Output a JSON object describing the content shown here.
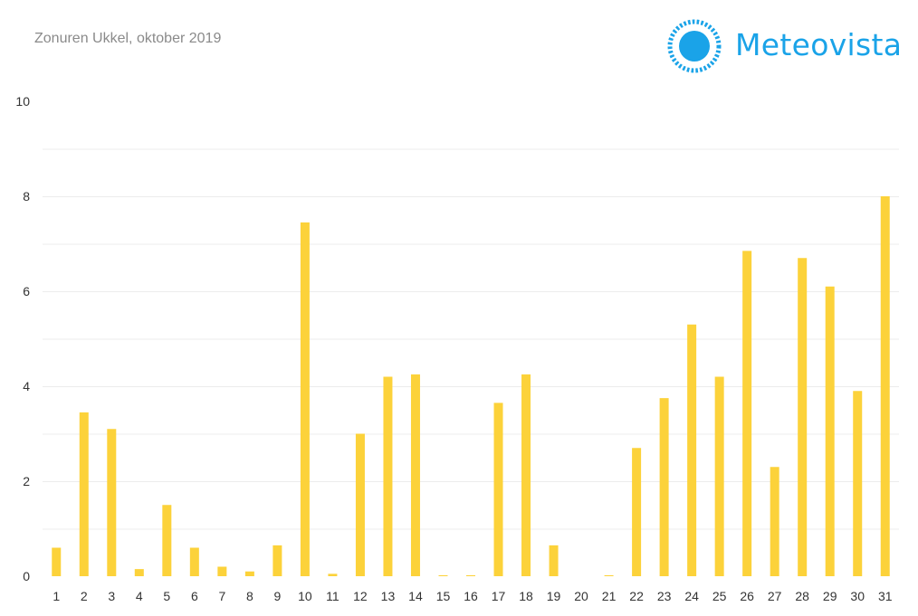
{
  "title": "Zonuren Ukkel, oktober 2019",
  "brand": {
    "name": "Meteovista",
    "icon": "sun-logo-icon",
    "color": "#1aa3e8"
  },
  "chart_data": {
    "type": "bar",
    "title": "Zonuren Ukkel, oktober 2019",
    "xlabel": "",
    "ylabel": "",
    "ylim": [
      0,
      10
    ],
    "yticks": [
      0,
      2,
      4,
      6,
      8,
      10
    ],
    "grid": true,
    "bar_color": "#fcd23a",
    "categories": [
      "1",
      "2",
      "3",
      "4",
      "5",
      "6",
      "7",
      "8",
      "9",
      "10",
      "11",
      "12",
      "13",
      "14",
      "15",
      "16",
      "17",
      "18",
      "19",
      "20",
      "21",
      "22",
      "23",
      "24",
      "25",
      "26",
      "27",
      "28",
      "29",
      "30",
      "31"
    ],
    "values": [
      0.6,
      3.45,
      3.1,
      0.15,
      1.5,
      0.6,
      0.2,
      0.1,
      0.65,
      7.45,
      0.05,
      3.0,
      4.2,
      4.25,
      0.02,
      0.02,
      3.65,
      4.25,
      0.65,
      0,
      0.02,
      2.7,
      3.75,
      5.3,
      4.2,
      6.85,
      2.3,
      6.7,
      6.1,
      3.9,
      8.0
    ]
  }
}
